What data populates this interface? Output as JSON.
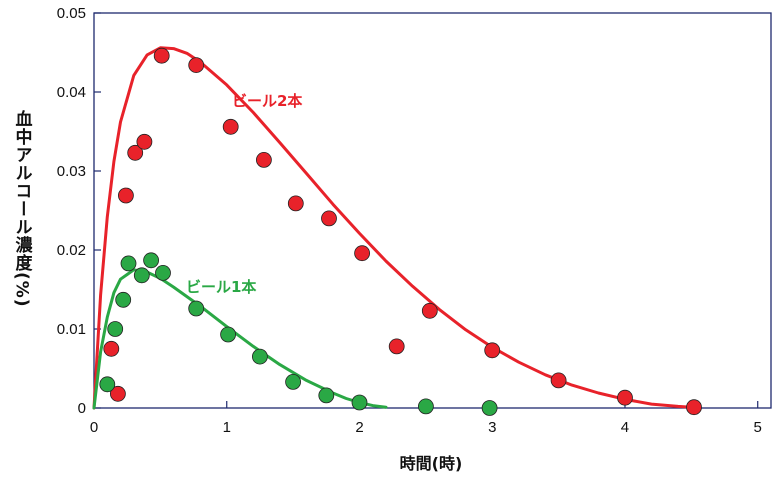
{
  "chart_data": {
    "type": "scatter",
    "xlabel": "時間(時)",
    "ylabel": "血中アルコール濃度(%)",
    "xlim": [
      0,
      5.1
    ],
    "ylim": [
      0,
      0.05
    ],
    "x_ticks": [
      "0",
      "1",
      "2",
      "3",
      "4",
      "5"
    ],
    "y_ticks": [
      "0",
      "0.01",
      "0.02",
      "0.03",
      "0.04",
      "0.05"
    ],
    "grid": false,
    "series": [
      {
        "name": "ビール2本",
        "color": "#e8222a",
        "points": [
          [
            0.13,
            0.0075
          ],
          [
            0.18,
            0.0018
          ],
          [
            0.24,
            0.0269
          ],
          [
            0.31,
            0.0323
          ],
          [
            0.38,
            0.0337
          ],
          [
            0.51,
            0.0446
          ],
          [
            0.77,
            0.0434
          ],
          [
            1.03,
            0.0356
          ],
          [
            1.28,
            0.0314
          ],
          [
            1.52,
            0.0259
          ],
          [
            1.77,
            0.024
          ],
          [
            2.02,
            0.0196
          ],
          [
            2.28,
            0.0078
          ],
          [
            2.53,
            0.0123
          ],
          [
            3.0,
            0.0073
          ],
          [
            3.5,
            0.0035
          ],
          [
            4.0,
            0.0013
          ],
          [
            4.52,
            0.0001
          ]
        ],
        "curve": [
          [
            0,
            0
          ],
          [
            0.05,
            0.0143
          ],
          [
            0.1,
            0.0242
          ],
          [
            0.15,
            0.0312
          ],
          [
            0.2,
            0.0362
          ],
          [
            0.3,
            0.0421
          ],
          [
            0.4,
            0.0447
          ],
          [
            0.5,
            0.0456
          ],
          [
            0.6,
            0.0455
          ],
          [
            0.7,
            0.0449
          ],
          [
            0.8,
            0.0438
          ],
          [
            1.0,
            0.0409
          ],
          [
            1.2,
            0.0374
          ],
          [
            1.4,
            0.0336
          ],
          [
            1.6,
            0.0297
          ],
          [
            1.8,
            0.0258
          ],
          [
            2.0,
            0.0221
          ],
          [
            2.2,
            0.0186
          ],
          [
            2.4,
            0.0154
          ],
          [
            2.6,
            0.0125
          ],
          [
            2.8,
            0.0099
          ],
          [
            3.0,
            0.0077
          ],
          [
            3.2,
            0.0058
          ],
          [
            3.4,
            0.0042
          ],
          [
            3.6,
            0.0029
          ],
          [
            3.8,
            0.0019
          ],
          [
            4.0,
            0.0011
          ],
          [
            4.2,
            0.0005
          ],
          [
            4.4,
            0.0002
          ],
          [
            4.5,
            0.0001
          ]
        ]
      },
      {
        "name": "ビール1本",
        "color": "#2aa845",
        "points": [
          [
            0.1,
            0.003
          ],
          [
            0.16,
            0.01
          ],
          [
            0.22,
            0.0137
          ],
          [
            0.26,
            0.0183
          ],
          [
            0.36,
            0.0168
          ],
          [
            0.43,
            0.0187
          ],
          [
            0.52,
            0.0171
          ],
          [
            0.77,
            0.0126
          ],
          [
            1.01,
            0.0093
          ],
          [
            1.25,
            0.0065
          ],
          [
            1.5,
            0.0033
          ],
          [
            1.75,
            0.0016
          ],
          [
            2.0,
            0.0007
          ],
          [
            2.5,
            0.0002
          ],
          [
            2.98,
            0.0
          ]
        ],
        "curve": [
          [
            0,
            0
          ],
          [
            0.05,
            0.0071
          ],
          [
            0.1,
            0.0115
          ],
          [
            0.15,
            0.0146
          ],
          [
            0.2,
            0.0163
          ],
          [
            0.3,
            0.0175
          ],
          [
            0.4,
            0.0172
          ],
          [
            0.5,
            0.0164
          ],
          [
            0.6,
            0.0153
          ],
          [
            0.8,
            0.0129
          ],
          [
            1.0,
            0.0103
          ],
          [
            1.2,
            0.0078
          ],
          [
            1.4,
            0.0055
          ],
          [
            1.6,
            0.0035
          ],
          [
            1.8,
            0.0019
          ],
          [
            1.9,
            0.0012
          ],
          [
            2.0,
            0.0007
          ],
          [
            2.1,
            0.0003
          ],
          [
            2.2,
            0.0001
          ]
        ]
      }
    ]
  }
}
